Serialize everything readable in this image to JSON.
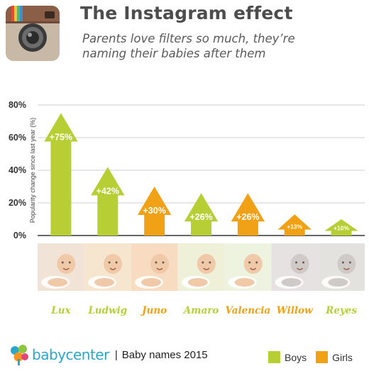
{
  "header": {
    "title": "The Instagram effect",
    "subtitle": "Parents love filters so much, they’re naming their babies after them"
  },
  "colors": {
    "boys": "#b7cf35",
    "girls": "#f0a116",
    "grid": "#cfcfcf",
    "axis": "#333333"
  },
  "chart_data": {
    "type": "bar",
    "style": "arrow",
    "categories": [
      "Lux",
      "Ludwig",
      "Juno",
      "Amaro",
      "Valencia",
      "Willow",
      "Reyes"
    ],
    "values": [
      75,
      42,
      30,
      26,
      26,
      13,
      10
    ],
    "data_labels": [
      "+75%",
      "+42%",
      "+30%",
      "+26%",
      "+26%",
      "+13%",
      "+10%"
    ],
    "groups": [
      "Boys",
      "Boys",
      "Girls",
      "Boys",
      "Girls",
      "Girls",
      "Boys"
    ],
    "ylabel": "Popularity change since last year (%)",
    "yticks": [
      "0%",
      "20%",
      "40%",
      "60%",
      "80%"
    ],
    "ylim": [
      0,
      80
    ],
    "grid": true,
    "legend": [
      {
        "name": "Boys"
      },
      {
        "name": "Girls"
      }
    ],
    "legend_position": "bottom-right"
  },
  "footer": {
    "brand": "babycenter",
    "separator": "|",
    "source": "Baby names 2015"
  }
}
